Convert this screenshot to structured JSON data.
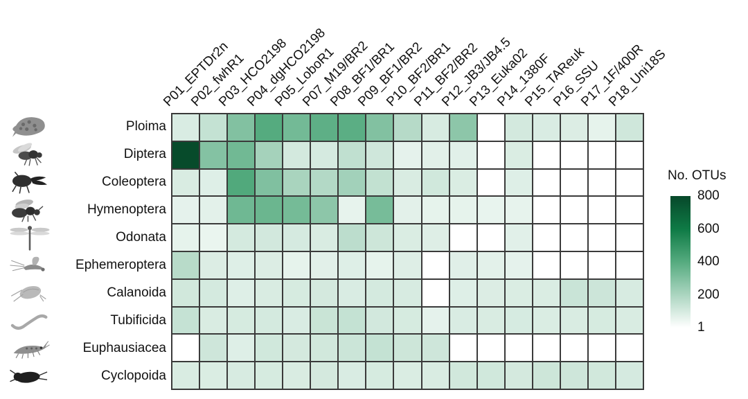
{
  "chart_data": {
    "type": "heatmap",
    "legend": {
      "title": "No. OTUs",
      "ticks": [
        800,
        600,
        400,
        200,
        1
      ],
      "min": 1,
      "max": 800,
      "color_stops": [
        {
          "value": 1,
          "color": "#ffffff"
        },
        {
          "value": 200,
          "color": "#abd5c0"
        },
        {
          "value": 400,
          "color": "#55ab7f"
        },
        {
          "value": 600,
          "color": "#0e7a45"
        },
        {
          "value": 800,
          "color": "#07482a"
        }
      ],
      "na_color": "#ffffff"
    },
    "grid_line_color": "#3a3a3a",
    "columns": [
      "P01_EPTDr2n",
      "P02_fwhR1",
      "P03_HCO2198",
      "P04_dgHCO2198",
      "P05_LoboR1",
      "P07_M19/BR2",
      "P08_BF1/BR1",
      "P09_BF1/BR2",
      "P10_BF2/BR1",
      "P11_BF2/BR2",
      "P12_JB3/JB4.5",
      "P13_Euka02",
      "P14_1380F",
      "P15_TAReuk",
      "P16_SSU",
      "P17_1F/400R",
      "P18_Uni18S"
    ],
    "rows": [
      {
        "label": "Ploima",
        "icon": "rotifer-icon",
        "values": [
          90,
          140,
          295,
          400,
          330,
          380,
          385,
          295,
          175,
          95,
          270,
          null,
          105,
          90,
          85,
          60,
          115
        ]
      },
      {
        "label": "Diptera",
        "icon": "fly-icon",
        "values": [
          790,
          290,
          335,
          215,
          105,
          100,
          150,
          115,
          62,
          70,
          72,
          null,
          88,
          null,
          null,
          null,
          null
        ]
      },
      {
        "label": "Coleoptera",
        "icon": "beetle-icon",
        "values": [
          92,
          78,
          410,
          300,
          205,
          180,
          220,
          145,
          92,
          112,
          88,
          null,
          78,
          null,
          null,
          null,
          null
        ]
      },
      {
        "label": "Hymenoptera",
        "icon": "wasp-icon",
        "values": [
          62,
          68,
          340,
          350,
          325,
          270,
          58,
          320,
          68,
          60,
          60,
          55,
          58,
          null,
          null,
          null,
          null
        ]
      },
      {
        "label": "Odonata",
        "icon": "dragonfly-icon",
        "values": [
          60,
          50,
          102,
          108,
          100,
          92,
          160,
          120,
          88,
          80,
          null,
          null,
          72,
          null,
          null,
          null,
          null
        ]
      },
      {
        "label": "Ephemeroptera",
        "icon": "mayfly-icon",
        "values": [
          170,
          85,
          78,
          85,
          60,
          70,
          78,
          60,
          80,
          null,
          75,
          68,
          62,
          null,
          null,
          null,
          null
        ]
      },
      {
        "label": "Calanoida",
        "icon": "calanoid-copepod-icon",
        "values": [
          110,
          102,
          78,
          92,
          98,
          104,
          90,
          102,
          96,
          null,
          78,
          85,
          88,
          88,
          128,
          122,
          96
        ]
      },
      {
        "label": "Tubificida",
        "icon": "worm-icon",
        "values": [
          138,
          92,
          98,
          102,
          90,
          130,
          140,
          108,
          98,
          62,
          90,
          92,
          97,
          88,
          92,
          98,
          92
        ]
      },
      {
        "label": "Euphausiacea",
        "icon": "krill-icon",
        "values": [
          null,
          118,
          78,
          112,
          104,
          110,
          125,
          140,
          120,
          118,
          null,
          null,
          null,
          null,
          null,
          null,
          null
        ]
      },
      {
        "label": "Cyclopoida",
        "icon": "cyclopoid-copepod-icon",
        "values": [
          92,
          88,
          96,
          98,
          92,
          104,
          90,
          98,
          88,
          92,
          110,
          112,
          104,
          120,
          118,
          110,
          100
        ]
      }
    ]
  }
}
